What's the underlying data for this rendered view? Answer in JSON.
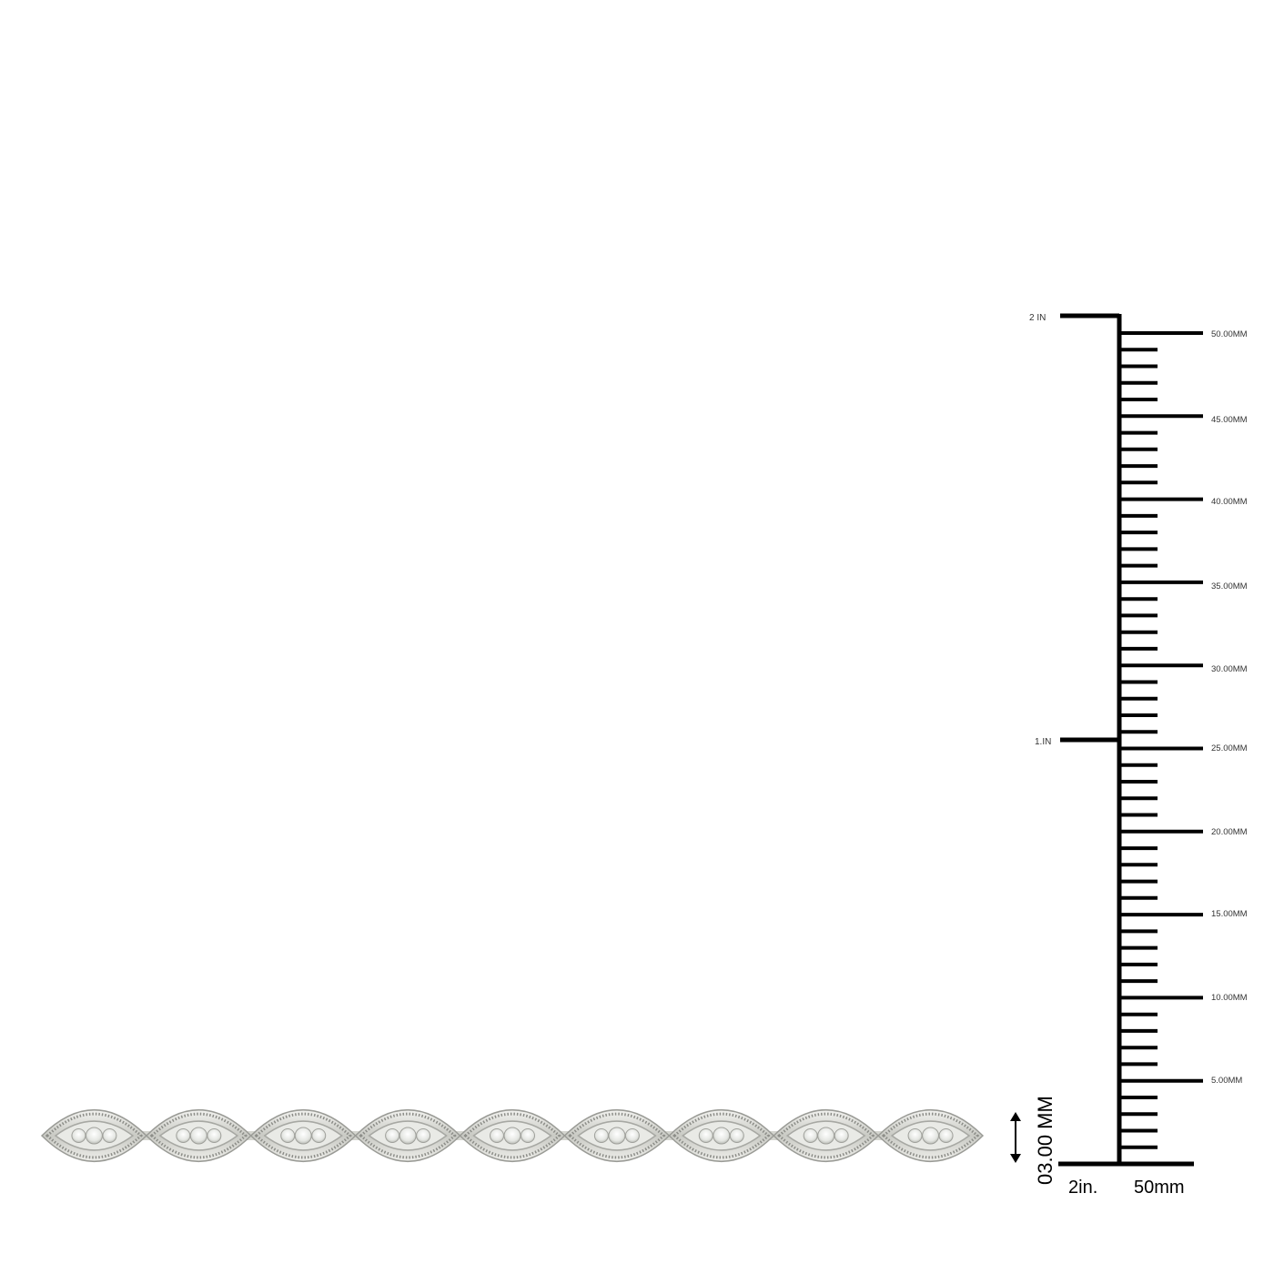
{
  "ruler": {
    "inch_labels": [
      "2 IN",
      "1.IN"
    ],
    "mm_labels": [
      "50.00MM",
      "45.00MM",
      "40.00MM",
      "35.00MM",
      "30.00MM",
      "25.00MM",
      "20.00MM",
      "15.00MM",
      "10.00MM",
      "5.00MM"
    ],
    "bottom_inch_label": "2in.",
    "bottom_mm_label": "50mm"
  },
  "width_indicator": {
    "label": "03.00 MM"
  },
  "product": {
    "segment_count": 9,
    "metal_color": "#d9dad5",
    "stone_color": "#f4f5f2"
  },
  "colors": {
    "ruler": "#000000",
    "background": "#ffffff"
  }
}
